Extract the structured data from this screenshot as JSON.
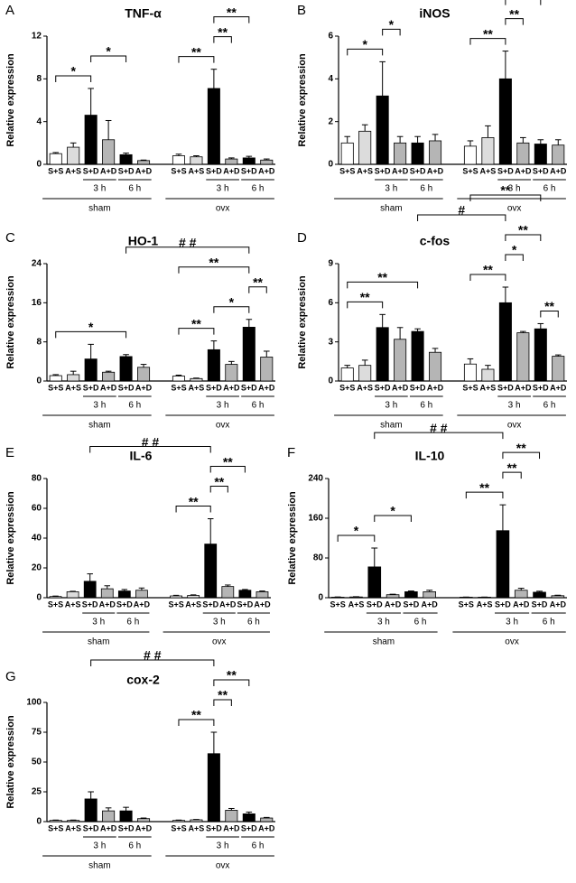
{
  "chart_data": [
    {
      "type": "bar",
      "panel": "A",
      "title": "TNF-α",
      "y_label": "Relative expression",
      "categories": [
        "S+S",
        "A+S",
        "S+D",
        "A+D",
        "S+D",
        "A+D",
        "S+S",
        "A+S",
        "S+D",
        "A+D",
        "S+D",
        "A+D"
      ],
      "values": [
        1.0,
        1.6,
        4.6,
        2.3,
        0.9,
        0.35,
        0.8,
        0.7,
        7.1,
        0.5,
        0.6,
        0.4
      ],
      "errors": [
        0.1,
        0.4,
        2.5,
        1.8,
        0.15,
        0.05,
        0.15,
        0.1,
        1.8,
        0.1,
        0.15,
        0.1
      ],
      "colors": [
        "#ffffff",
        "#dcdcdc",
        "#000000",
        "#b5b5b5",
        "#000000",
        "#b5b5b5",
        "#ffffff",
        "#dcdcdc",
        "#000000",
        "#b5b5b5",
        "#000000",
        "#b5b5b5"
      ],
      "ylim": [
        0,
        12
      ],
      "yticks": [
        0,
        4,
        8,
        12
      ],
      "subgroups": [
        "3 h",
        "6 h"
      ],
      "groups": [
        "sham",
        "ovx"
      ],
      "comparisons": [
        {
          "label": "*",
          "bars": [
            0,
            2
          ]
        },
        {
          "label": "*",
          "bars": [
            2,
            4
          ]
        },
        {
          "label": "**",
          "bars": [
            6,
            8
          ]
        },
        {
          "label": "**",
          "bars": [
            8,
            9
          ]
        },
        {
          "label": "**",
          "bars": [
            8,
            10
          ]
        }
      ]
    },
    {
      "type": "bar",
      "panel": "B",
      "title": "iNOS",
      "y_label": "Relative expression",
      "categories": [
        "S+S",
        "A+S",
        "S+D",
        "A+D",
        "S+D",
        "A+D",
        "S+S",
        "A+S",
        "S+D",
        "A+D",
        "S+D",
        "A+D"
      ],
      "values": [
        1.0,
        1.55,
        3.2,
        1.0,
        1.0,
        1.1,
        0.85,
        1.25,
        4.0,
        1.0,
        0.95,
        0.9
      ],
      "errors": [
        0.3,
        0.3,
        1.6,
        0.3,
        0.3,
        0.3,
        0.25,
        0.55,
        1.3,
        0.25,
        0.2,
        0.25
      ],
      "colors": [
        "#ffffff",
        "#dcdcdc",
        "#000000",
        "#b5b5b5",
        "#000000",
        "#b5b5b5",
        "#ffffff",
        "#dcdcdc",
        "#000000",
        "#b5b5b5",
        "#000000",
        "#b5b5b5"
      ],
      "ylim": [
        0,
        6
      ],
      "yticks": [
        0,
        2,
        4,
        6
      ],
      "subgroups": [
        "3 h",
        "6 h"
      ],
      "groups": [
        "sham",
        "ovx"
      ],
      "comparisons": [
        {
          "label": "*",
          "bars": [
            0,
            2
          ]
        },
        {
          "label": "*",
          "bars": [
            2,
            3
          ]
        },
        {
          "label": "**",
          "bars": [
            6,
            8
          ]
        },
        {
          "label": "**",
          "bars": [
            8,
            9
          ]
        },
        {
          "label": "**",
          "bars": [
            8,
            10
          ]
        }
      ]
    },
    {
      "type": "bar",
      "panel": "C",
      "title": "HO-1",
      "y_label": "Relative expression",
      "categories": [
        "S+S",
        "A+S",
        "S+D",
        "A+D",
        "S+D",
        "A+D",
        "S+S",
        "A+S",
        "S+D",
        "A+D",
        "S+D",
        "A+D"
      ],
      "values": [
        1.1,
        1.3,
        4.5,
        1.8,
        5.0,
        2.8,
        1.0,
        0.5,
        6.4,
        3.4,
        11,
        4.9
      ],
      "errors": [
        0.2,
        0.7,
        3,
        0.2,
        0.4,
        0.6,
        0.2,
        0.1,
        1.8,
        0.6,
        1.6,
        1.2
      ],
      "colors": [
        "#ffffff",
        "#dcdcdc",
        "#000000",
        "#b5b5b5",
        "#000000",
        "#b5b5b5",
        "#ffffff",
        "#dcdcdc",
        "#000000",
        "#b5b5b5",
        "#000000",
        "#b5b5b5"
      ],
      "ylim": [
        0,
        24
      ],
      "yticks": [
        0,
        8,
        16,
        24
      ],
      "subgroups": [
        "3 h",
        "6 h"
      ],
      "groups": [
        "sham",
        "ovx"
      ],
      "comparisons": [
        {
          "label": "*",
          "bars": [
            0,
            4
          ]
        },
        {
          "label": "**",
          "bars": [
            6,
            8
          ]
        },
        {
          "label": "*",
          "bars": [
            8,
            10
          ]
        },
        {
          "label": "**",
          "bars": [
            10,
            11
          ]
        },
        {
          "label": "**",
          "bars": [
            6,
            10
          ]
        },
        {
          "label": "# #",
          "bars": [
            4,
            10
          ]
        }
      ]
    },
    {
      "type": "bar",
      "panel": "D",
      "title": "c-fos",
      "y_label": "Relative expression",
      "categories": [
        "S+S",
        "A+S",
        "S+D",
        "A+D",
        "S+D",
        "A+D",
        "S+S",
        "A+S",
        "S+D",
        "A+D",
        "S+D",
        "A+D"
      ],
      "values": [
        1.0,
        1.2,
        4.1,
        3.2,
        3.8,
        2.2,
        1.3,
        0.9,
        6.0,
        3.7,
        4.0,
        1.9
      ],
      "errors": [
        0.2,
        0.4,
        1,
        0.9,
        0.2,
        0.3,
        0.4,
        0.3,
        1.2,
        0.1,
        0.4,
        0.1
      ],
      "colors": [
        "#ffffff",
        "#dcdcdc",
        "#000000",
        "#b5b5b5",
        "#000000",
        "#b5b5b5",
        "#ffffff",
        "#dcdcdc",
        "#000000",
        "#b5b5b5",
        "#000000",
        "#b5b5b5"
      ],
      "ylim": [
        0,
        9
      ],
      "yticks": [
        0,
        3,
        6,
        9
      ],
      "subgroups": [
        "3 h",
        "6 h"
      ],
      "groups": [
        "sham",
        "ovx"
      ],
      "comparisons": [
        {
          "label": "**",
          "bars": [
            0,
            2
          ]
        },
        {
          "label": "**",
          "bars": [
            0,
            4
          ]
        },
        {
          "label": "**",
          "bars": [
            10,
            11
          ]
        },
        {
          "label": "**",
          "bars": [
            6,
            8
          ]
        },
        {
          "label": "*",
          "bars": [
            8,
            9
          ]
        },
        {
          "label": "**",
          "bars": [
            8,
            10
          ]
        },
        {
          "label": "#",
          "bars": [
            4,
            8
          ]
        },
        {
          "label": "**",
          "bars": [
            6,
            10
          ]
        }
      ]
    },
    {
      "type": "bar",
      "panel": "E",
      "title": "IL-6",
      "y_label": "Relative expression",
      "categories": [
        "S+S",
        "A+S",
        "S+D",
        "A+D",
        "S+D",
        "A+D",
        "S+S",
        "A+S",
        "S+D",
        "A+D",
        "S+D",
        "A+D"
      ],
      "values": [
        0.8,
        4,
        11,
        6,
        4.5,
        5,
        1.2,
        1.5,
        36,
        7.5,
        5,
        4
      ],
      "errors": [
        0.3,
        0.3,
        5,
        2,
        1,
        1.5,
        0.4,
        0.4,
        17,
        1,
        0.5,
        0.5
      ],
      "colors": [
        "#ffffff",
        "#dcdcdc",
        "#000000",
        "#b5b5b5",
        "#000000",
        "#b5b5b5",
        "#ffffff",
        "#dcdcdc",
        "#000000",
        "#b5b5b5",
        "#000000",
        "#b5b5b5"
      ],
      "ylim": [
        0,
        80
      ],
      "yticks": [
        0,
        20,
        40,
        60,
        80
      ],
      "subgroups": [
        "3 h",
        "6 h"
      ],
      "groups": [
        "sham",
        "ovx"
      ],
      "comparisons": [
        {
          "label": "**",
          "bars": [
            6,
            8
          ]
        },
        {
          "label": "**",
          "bars": [
            8,
            9
          ]
        },
        {
          "label": "**",
          "bars": [
            8,
            10
          ]
        },
        {
          "label": "# #",
          "bars": [
            2,
            8
          ]
        }
      ]
    },
    {
      "type": "bar",
      "panel": "F",
      "title": "IL-10",
      "y_label": "Relative expression",
      "categories": [
        "S+S",
        "A+S",
        "S+D",
        "A+D",
        "S+D",
        "A+D",
        "S+S",
        "A+S",
        "S+D",
        "A+D",
        "S+D",
        "A+D"
      ],
      "values": [
        1,
        1.5,
        62,
        6,
        12,
        12,
        1,
        1,
        135,
        15,
        11,
        4
      ],
      "errors": [
        0.5,
        0.5,
        38,
        1,
        1.5,
        3,
        0.3,
        0.3,
        52,
        4,
        2,
        1
      ],
      "colors": [
        "#ffffff",
        "#dcdcdc",
        "#000000",
        "#b5b5b5",
        "#000000",
        "#b5b5b5",
        "#ffffff",
        "#dcdcdc",
        "#000000",
        "#b5b5b5",
        "#000000",
        "#b5b5b5"
      ],
      "ylim": [
        0,
        240
      ],
      "yticks": [
        0,
        80,
        160,
        240
      ],
      "subgroups": [
        "3 h",
        "6 h"
      ],
      "groups": [
        "sham",
        "ovx"
      ],
      "comparisons": [
        {
          "label": "*",
          "bars": [
            0,
            2
          ]
        },
        {
          "label": "*",
          "bars": [
            2,
            4
          ]
        },
        {
          "label": "**",
          "bars": [
            6,
            8
          ]
        },
        {
          "label": "**",
          "bars": [
            8,
            9
          ]
        },
        {
          "label": "**",
          "bars": [
            8,
            10
          ]
        },
        {
          "label": "# #",
          "bars": [
            2,
            8
          ]
        }
      ]
    },
    {
      "type": "bar",
      "panel": "G",
      "title": "cox-2",
      "y_label": "Relative expression",
      "categories": [
        "S+S",
        "A+S",
        "S+D",
        "A+D",
        "S+D",
        "A+D",
        "S+S",
        "A+S",
        "S+D",
        "A+D",
        "S+D",
        "A+D"
      ],
      "values": [
        1,
        1,
        19,
        9,
        9,
        2.5,
        1,
        1.5,
        57,
        9.5,
        6.5,
        3
      ],
      "errors": [
        0.3,
        0.3,
        6,
        2.5,
        3,
        0.5,
        0.3,
        0.3,
        18,
        1.5,
        1.5,
        0.5
      ],
      "colors": [
        "#ffffff",
        "#dcdcdc",
        "#000000",
        "#b5b5b5",
        "#000000",
        "#b5b5b5",
        "#ffffff",
        "#dcdcdc",
        "#000000",
        "#b5b5b5",
        "#000000",
        "#b5b5b5"
      ],
      "ylim": [
        0,
        100
      ],
      "yticks": [
        0,
        25,
        50,
        75,
        100
      ],
      "subgroups": [
        "3 h",
        "6 h"
      ],
      "groups": [
        "sham",
        "ovx"
      ],
      "comparisons": [
        {
          "label": "**",
          "bars": [
            6,
            8
          ]
        },
        {
          "label": "**",
          "bars": [
            8,
            9
          ]
        },
        {
          "label": "**",
          "bars": [
            8,
            10
          ]
        },
        {
          "label": "# #",
          "bars": [
            2,
            8
          ]
        }
      ]
    }
  ]
}
